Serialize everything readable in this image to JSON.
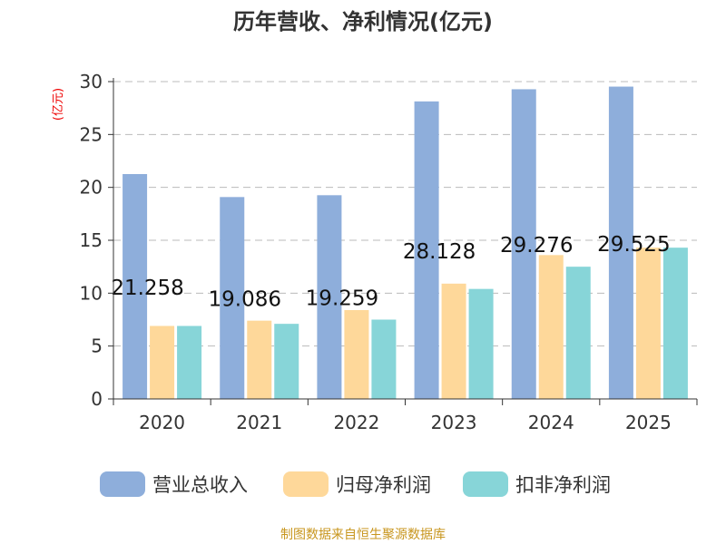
{
  "chart_data": {
    "type": "bar",
    "title": "历年营收、净利情况(亿元)",
    "ylabel": "(亿元)",
    "ylim": [
      0,
      30
    ],
    "yticks": [
      0,
      5,
      10,
      15,
      20,
      25,
      30
    ],
    "grid": true,
    "legend_position": "bottom",
    "categories": [
      "2020",
      "2021",
      "2022",
      "2023",
      "2024",
      "2025"
    ],
    "series": [
      {
        "name": "营业总收入",
        "color": "#8eaedb",
        "values": [
          21.258,
          19.086,
          19.259,
          28.128,
          29.276,
          29.525
        ],
        "labels": [
          "21.258",
          "19.086",
          "19.259",
          "28.128",
          "29.276",
          "29.525"
        ]
      },
      {
        "name": "归母净利润",
        "color": "#fed89a",
        "values": [
          6.9,
          7.4,
          8.4,
          10.9,
          13.6,
          14.3
        ]
      },
      {
        "name": "扣非净利润",
        "color": "#87d5d8",
        "values": [
          6.9,
          7.1,
          7.5,
          10.4,
          12.5,
          14.3
        ]
      }
    ]
  },
  "source": "制图数据来自恒生聚源数据库"
}
